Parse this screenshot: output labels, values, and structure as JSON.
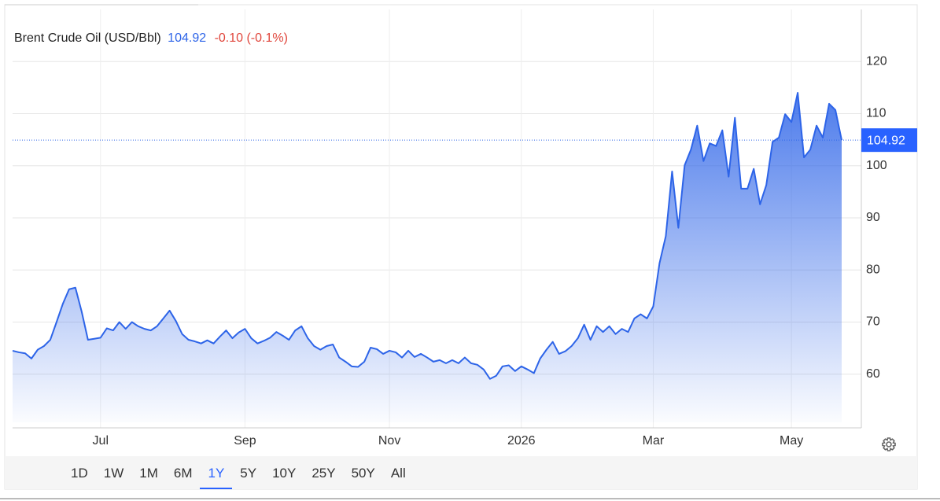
{
  "chart_data": {
    "type": "area",
    "title": "Brent Crude Oil (USD/Bbl)",
    "price": 104.92,
    "change": "-0.10 (-0.1%)",
    "categories": [
      null,
      null,
      null,
      null,
      null,
      null,
      null,
      null,
      null,
      null,
      null,
      null,
      null,
      null,
      "Jul",
      null,
      null,
      null,
      null,
      null,
      null,
      null,
      null,
      null,
      null,
      null,
      null,
      null,
      null,
      null,
      null,
      null,
      null,
      null,
      null,
      null,
      null,
      "Sep",
      null,
      null,
      null,
      null,
      null,
      null,
      null,
      null,
      null,
      null,
      null,
      null,
      null,
      null,
      null,
      null,
      null,
      null,
      null,
      null,
      null,
      null,
      "Nov",
      null,
      null,
      null,
      null,
      null,
      null,
      null,
      null,
      null,
      null,
      null,
      null,
      null,
      null,
      null,
      null,
      null,
      null,
      null,
      null,
      "2026",
      null,
      null,
      null,
      null,
      null,
      null,
      null,
      null,
      null,
      null,
      null,
      null,
      null,
      null,
      null,
      null,
      null,
      null,
      null,
      null,
      "Mar",
      null,
      null,
      null,
      null,
      null,
      null,
      null,
      null,
      null,
      null,
      null,
      null,
      null,
      null,
      null,
      null,
      null,
      null,
      null,
      null,
      null,
      "May",
      null,
      null,
      null,
      null,
      null,
      null,
      null,
      null
    ],
    "series": [
      {
        "name": "Brent Crude Oil",
        "color": "#2d64e8",
        "values": [
          64.5,
          64.2,
          64,
          63,
          64.7,
          65.4,
          66.6,
          70,
          73.5,
          76.3,
          76.6,
          72,
          66.6,
          66.8,
          67,
          68.8,
          68.4,
          70,
          68.7,
          70,
          69.2,
          68.7,
          68.4,
          69.2,
          70.7,
          72.2,
          70.2,
          67.7,
          66.6,
          66.3,
          65.9,
          66.5,
          65.9,
          67.2,
          68.4,
          66.9,
          68,
          68.7,
          66.9,
          65.9,
          66.4,
          67,
          68.1,
          67.4,
          66.6,
          68.4,
          69.2,
          66.9,
          65.4,
          64.7,
          65.4,
          65.7,
          63.2,
          62.4,
          61.5,
          61.4,
          62.4,
          65.1,
          64.8,
          63.9,
          64.5,
          64.2,
          63.2,
          64.5,
          63.3,
          63.9,
          63.2,
          62.4,
          62.7,
          62.1,
          62.7,
          62.1,
          63.2,
          62.1,
          61.8,
          60.9,
          59.1,
          59.7,
          61.5,
          61.7,
          60.6,
          61.5,
          60.9,
          60.2,
          63,
          64.7,
          66.2,
          63.9,
          64.4,
          65.4,
          66.9,
          69.5,
          66.6,
          69.2,
          68.1,
          69.2,
          67.7,
          68.7,
          68.1,
          70.7,
          71.5,
          70.7,
          73,
          81.3,
          86.5,
          98.9,
          88.1,
          100.1,
          103.1,
          107.7,
          100.9,
          104.3,
          103.8,
          106.8,
          97.9,
          109.2,
          95.6,
          95.6,
          99.4,
          92.6,
          96.3,
          104.6,
          105.4,
          109.9,
          108.4,
          114,
          101.6,
          103.1,
          107.7,
          105.4,
          111.9,
          110.7,
          104.92
        ]
      }
    ],
    "ylim": [
      49.7,
      130
    ],
    "yticks": [
      60,
      70,
      80,
      90,
      100,
      110,
      120
    ],
    "grid": true,
    "ranges": [
      "1D",
      "1W",
      "1M",
      "6M",
      "1Y",
      "5Y",
      "10Y",
      "25Y",
      "50Y",
      "All"
    ],
    "selected_range": "1Y"
  }
}
